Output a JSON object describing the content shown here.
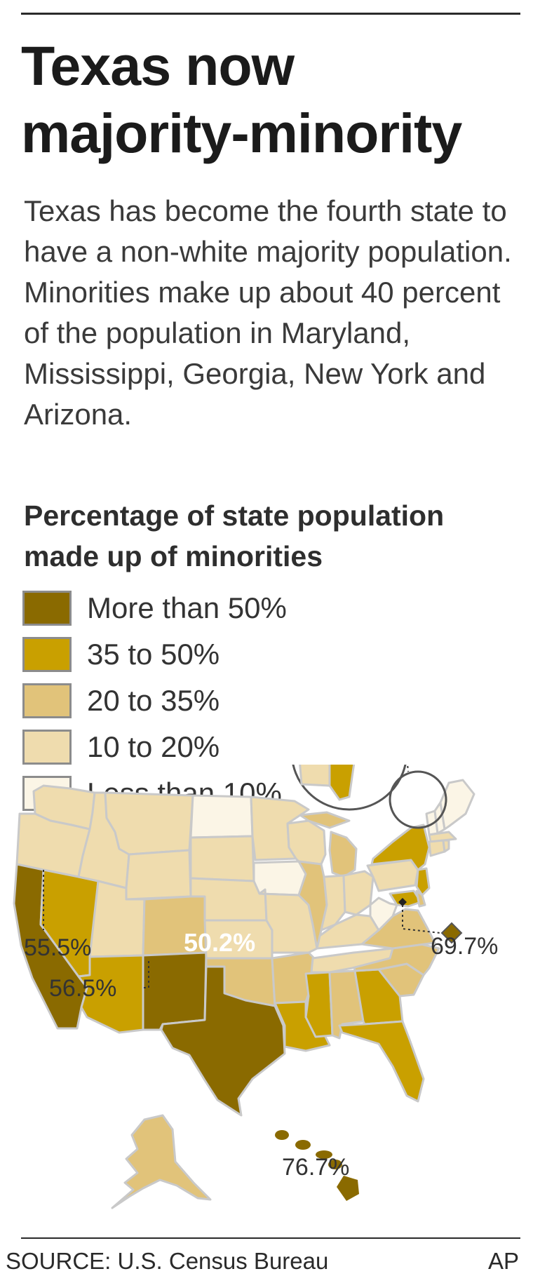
{
  "headline": "Texas now majority-minority",
  "intro": "Texas has become the fourth state to have a non-white majority population. Minorities make up about 40 percent of the population in Maryland, Mississippi, Georgia, New York and Arizona.",
  "map_title": "Percentage of state population made up of minorities",
  "legend": [
    {
      "label": "More than 50%",
      "color": "#8a6a00"
    },
    {
      "label": "35 to 50%",
      "color": "#c9a000"
    },
    {
      "label": "20 to 35%",
      "color": "#e1c37a"
    },
    {
      "label": "10 to 20%",
      "color": "#efdcae"
    },
    {
      "label": "Less than 10%",
      "color": "#fbf5e6"
    }
  ],
  "callouts": {
    "california": "55.5%",
    "new_mexico": "56.5%",
    "texas": "50.2%",
    "dc": "69.7%",
    "hawaii": "76.7%"
  },
  "source": "SOURCE: U.S. Census Bureau",
  "credit": "AP"
}
